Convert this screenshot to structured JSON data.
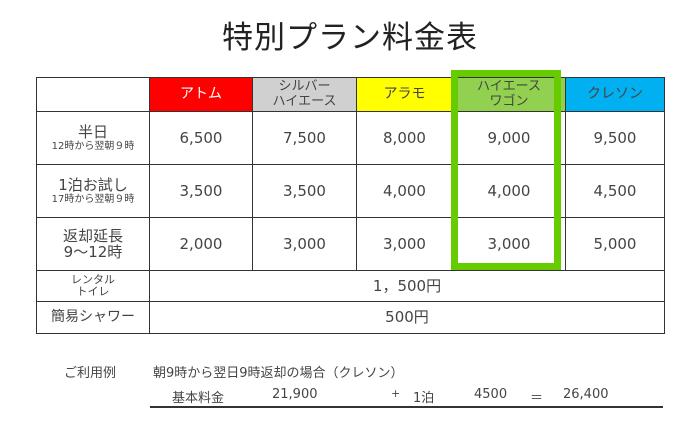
{
  "title": "特別プラン料金表",
  "headers": [
    "アトム",
    "シルバー\nハイエース",
    "アラモ",
    "ハイエース\nワゴン",
    "クレソン"
  ],
  "header_colors": [
    "#ff0000",
    "#d0d0d0",
    "#ffff00",
    "#92d050",
    "#00b0f0"
  ],
  "highlight_color": "#66cc00",
  "rows": [
    {
      "label": "半日",
      "sub": "12時から翌朝９時",
      "values": [
        "6,500",
        "7,500",
        "8,000",
        "9,000",
        "9,500"
      ]
    },
    {
      "label": "1泊お試し",
      "sub": "17時から翌朝９時",
      "values": [
        "3,500",
        "3,500",
        "4,000",
        "4,000",
        "4,500"
      ]
    },
    {
      "label": "返却延長",
      "sub": "9～12時",
      "values": [
        "2,000",
        "3,000",
        "3,000",
        "3,000",
        "5,000"
      ]
    }
  ],
  "extras": [
    {
      "label": "レンタル\nトイレ",
      "value": "1，500円"
    },
    {
      "label": "簡易シャワー",
      "value": "500円"
    }
  ],
  "example": {
    "label": "ご利用例",
    "desc": "朝9時から翌日9時返却の場合（クレソン）",
    "base_label": "基本料金",
    "base": "21,900",
    "plus": "+",
    "night_label": "1泊",
    "night": "4500",
    "eq": "＝",
    "total": "26,400"
  }
}
